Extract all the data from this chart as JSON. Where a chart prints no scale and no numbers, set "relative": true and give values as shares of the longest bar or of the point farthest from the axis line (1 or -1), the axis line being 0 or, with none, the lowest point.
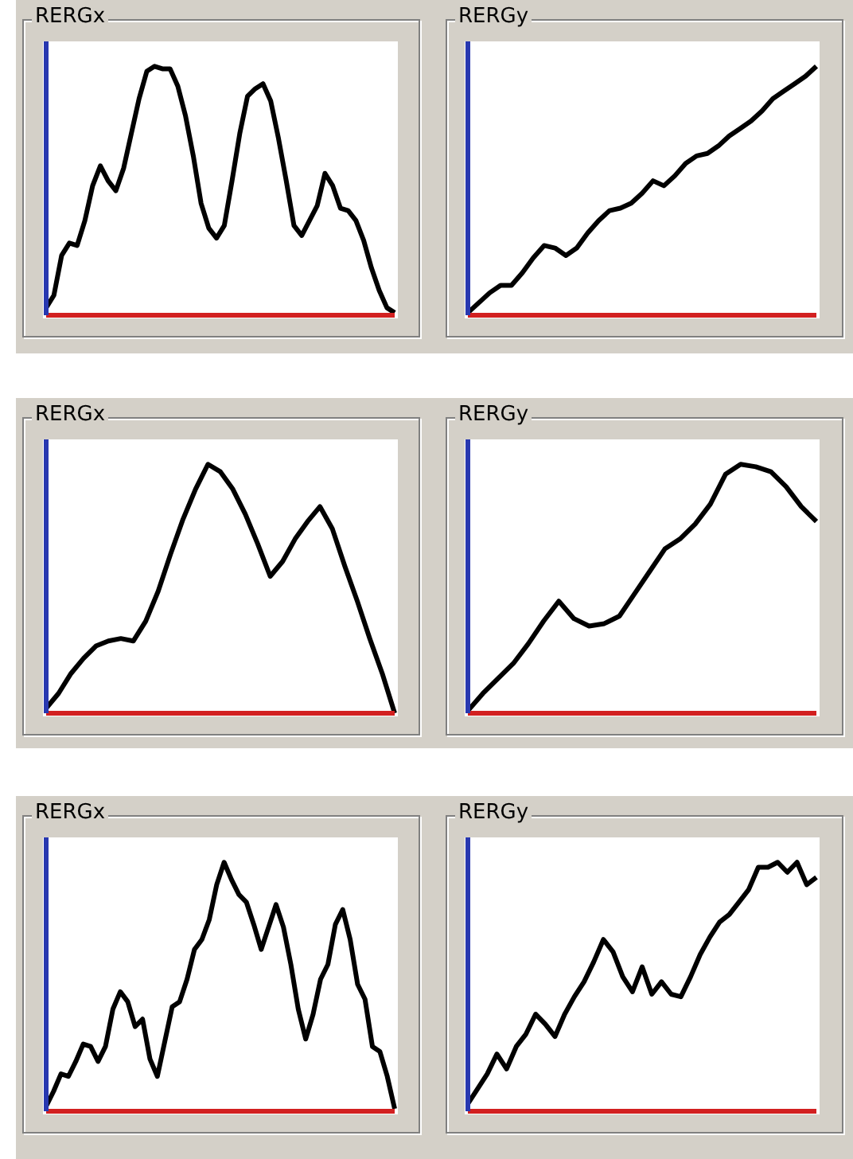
{
  "chart_data": [
    {
      "type": "line",
      "title": "RERGx",
      "relative": true,
      "color": "#000000",
      "categories": [
        null,
        null,
        null,
        null,
        null,
        null,
        null,
        null,
        null,
        null,
        null,
        null,
        null,
        null,
        null,
        null,
        null,
        null,
        null,
        null,
        null,
        null,
        null,
        null,
        null,
        null,
        null,
        null,
        null,
        null,
        null,
        null,
        null,
        null,
        null,
        null,
        null,
        null,
        null,
        null,
        null,
        null,
        null,
        null,
        null,
        null
      ],
      "values": [
        0.03,
        0.08,
        0.24,
        0.29,
        0.28,
        0.38,
        0.52,
        0.6,
        0.54,
        0.5,
        0.59,
        0.73,
        0.87,
        0.98,
        1,
        0.99,
        0.99,
        0.92,
        0.8,
        0.64,
        0.45,
        0.35,
        0.31,
        0.36,
        0.54,
        0.73,
        0.88,
        0.91,
        0.93,
        0.86,
        0.71,
        0.54,
        0.36,
        0.32,
        0.38,
        0.44,
        0.57,
        0.52,
        0.43,
        0.42,
        0.38,
        0.3,
        0.19,
        0.1,
        0.03,
        0.01
      ]
    },
    {
      "type": "line",
      "title": "RERGy",
      "relative": true,
      "color": "#000000",
      "categories": [
        null,
        null,
        null,
        null,
        null,
        null,
        null,
        null,
        null,
        null,
        null,
        null,
        null,
        null,
        null,
        null,
        null,
        null,
        null,
        null,
        null,
        null,
        null,
        null,
        null,
        null,
        null,
        null,
        null,
        null,
        null,
        null,
        null
      ],
      "values": [
        0.01,
        0.05,
        0.09,
        0.12,
        0.12,
        0.17,
        0.23,
        0.28,
        0.27,
        0.24,
        0.27,
        0.33,
        0.38,
        0.42,
        0.43,
        0.45,
        0.49,
        0.54,
        0.52,
        0.56,
        0.61,
        0.64,
        0.65,
        0.68,
        0.72,
        0.75,
        0.78,
        0.82,
        0.87,
        0.9,
        0.93,
        0.96,
        1
      ]
    },
    {
      "type": "line",
      "title": "RERGx",
      "relative": true,
      "color": "#000000",
      "categories": [
        null,
        null,
        null,
        null,
        null,
        null,
        null,
        null,
        null,
        null,
        null,
        null,
        null,
        null,
        null,
        null,
        null,
        null,
        null,
        null,
        null,
        null,
        null,
        null,
        null,
        null,
        null,
        null,
        null
      ],
      "values": [
        0.02,
        0.08,
        0.16,
        0.22,
        0.27,
        0.29,
        0.3,
        0.29,
        0.37,
        0.49,
        0.64,
        0.78,
        0.9,
        1,
        0.97,
        0.9,
        0.8,
        0.68,
        0.55,
        0.61,
        0.7,
        0.77,
        0.83,
        0.74,
        0.59,
        0.45,
        0.3,
        0.16,
        0
      ]
    },
    {
      "type": "line",
      "title": "RERGy",
      "relative": true,
      "color": "#000000",
      "categories": [
        null,
        null,
        null,
        null,
        null,
        null,
        null,
        null,
        null,
        null,
        null,
        null,
        null,
        null,
        null,
        null,
        null,
        null,
        null,
        null,
        null,
        null,
        null,
        null
      ],
      "values": [
        0.01,
        0.08,
        0.14,
        0.2,
        0.28,
        0.37,
        0.45,
        0.38,
        0.35,
        0.36,
        0.39,
        0.48,
        0.57,
        0.66,
        0.7,
        0.76,
        0.84,
        0.96,
        1,
        0.99,
        0.97,
        0.91,
        0.83,
        0.77
      ]
    },
    {
      "type": "line",
      "title": "RERGx",
      "relative": true,
      "color": "#000000",
      "categories": [
        null,
        null,
        null,
        null,
        null,
        null,
        null,
        null,
        null,
        null,
        null,
        null,
        null,
        null,
        null,
        null,
        null,
        null,
        null,
        null,
        null,
        null,
        null,
        null,
        null,
        null,
        null,
        null,
        null,
        null,
        null,
        null,
        null,
        null,
        null,
        null,
        null,
        null,
        null,
        null,
        null,
        null,
        null,
        null,
        null,
        null,
        null,
        null
      ],
      "values": [
        0.02,
        0.08,
        0.15,
        0.14,
        0.2,
        0.27,
        0.26,
        0.2,
        0.26,
        0.41,
        0.48,
        0.44,
        0.34,
        0.37,
        0.21,
        0.14,
        0.28,
        0.42,
        0.44,
        0.53,
        0.65,
        0.69,
        0.77,
        0.91,
        1,
        0.93,
        0.87,
        0.84,
        0.75,
        0.65,
        0.74,
        0.83,
        0.74,
        0.59,
        0.41,
        0.29,
        0.39,
        0.53,
        0.59,
        0.75,
        0.81,
        0.69,
        0.51,
        0.45,
        0.26,
        0.24,
        0.14,
        0.01
      ]
    },
    {
      "type": "line",
      "title": "RERGy",
      "relative": true,
      "color": "#000000",
      "categories": [
        null,
        null,
        null,
        null,
        null,
        null,
        null,
        null,
        null,
        null,
        null,
        null,
        null,
        null,
        null,
        null,
        null,
        null,
        null,
        null,
        null,
        null,
        null,
        null,
        null,
        null,
        null,
        null,
        null,
        null,
        null,
        null,
        null,
        null,
        null,
        null,
        null
      ],
      "values": [
        0.03,
        0.09,
        0.15,
        0.23,
        0.17,
        0.26,
        0.31,
        0.39,
        0.35,
        0.3,
        0.39,
        0.46,
        0.52,
        0.6,
        0.69,
        0.64,
        0.54,
        0.48,
        0.58,
        0.47,
        0.52,
        0.47,
        0.46,
        0.54,
        0.63,
        0.7,
        0.76,
        0.79,
        0.84,
        0.89,
        0.98,
        0.98,
        1,
        0.96,
        1,
        0.91,
        0.94
      ]
    }
  ]
}
